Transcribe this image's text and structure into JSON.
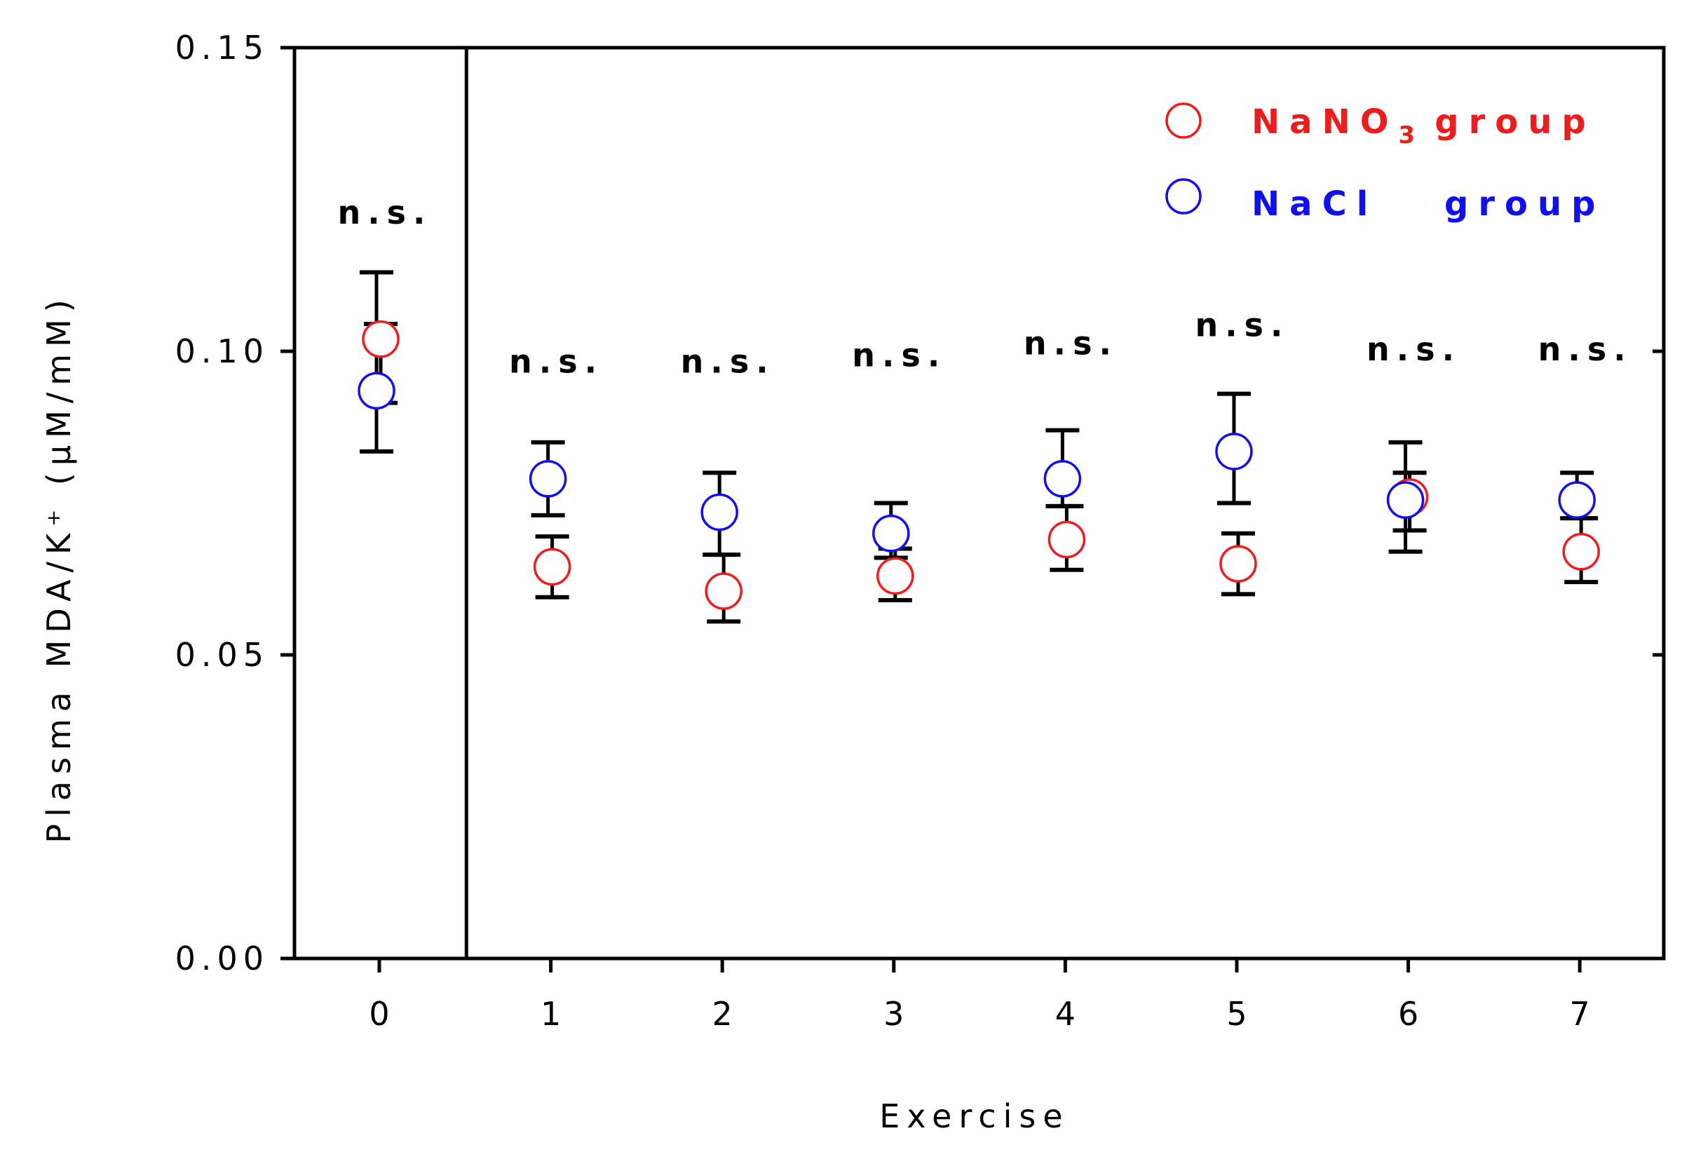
{
  "chart_data": {
    "type": "scatter",
    "xlabel": "Exercise",
    "ylabel": "Plasma MDA/K⁺ (μM/mM)",
    "ylim": [
      0,
      0.15
    ],
    "yticks": [
      "0.00",
      "0.05",
      "0.10",
      "0.15"
    ],
    "categories": [
      "0",
      "1",
      "2",
      "3",
      "4",
      "5",
      "6",
      "7"
    ],
    "series": [
      {
        "name_main": "NaNO",
        "name_sub": "3",
        "name_rest": "group",
        "color": "#ee1c1c",
        "values": [
          0.102,
          0.0645,
          0.0605,
          0.063,
          0.069,
          0.065,
          0.076,
          0.067
        ],
        "err_low": [
          0.0915,
          0.0595,
          0.0555,
          0.059,
          0.064,
          0.06,
          0.0705,
          0.062
        ],
        "err_high": [
          0.1045,
          0.0695,
          0.0665,
          0.0675,
          0.0745,
          0.07,
          0.08,
          0.0725
        ]
      },
      {
        "name_main": "NaCl",
        "name_sub": "",
        "name_rest": "group",
        "color": "#1010ee",
        "values": [
          0.0935,
          0.079,
          0.0735,
          0.07,
          0.079,
          0.0835,
          0.0755,
          0.0755
        ],
        "err_low": [
          0.0835,
          0.073,
          0.0665,
          0.066,
          0.0745,
          0.075,
          0.067,
          0.0725
        ],
        "err_high": [
          0.113,
          0.085,
          0.08,
          0.075,
          0.087,
          0.093,
          0.085,
          0.08
        ]
      }
    ],
    "annotations": [
      "n.s.",
      "n.s.",
      "n.s.",
      "n.s.",
      "n.s.",
      "n.s.",
      "n.s.",
      "n.s."
    ],
    "annotation_levels": [
      0.121,
      0.0965,
      0.0965,
      0.0975,
      0.0995,
      0.1025,
      0.0985,
      0.0985
    ],
    "divider_after_category": "0",
    "legend_position": "top-right",
    "grid": false
  }
}
